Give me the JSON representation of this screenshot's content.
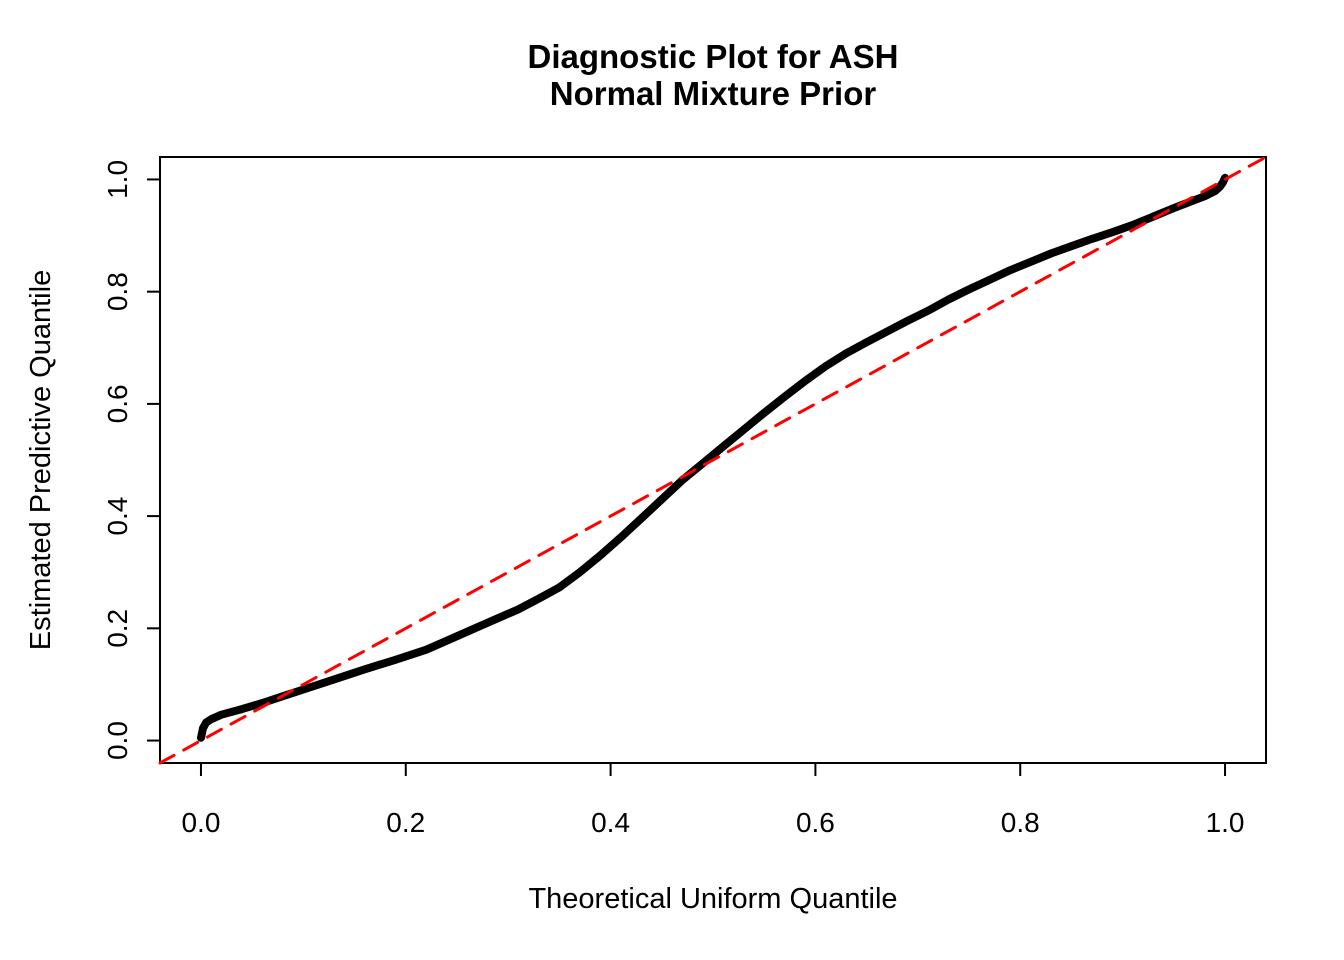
{
  "title": {
    "line1": "Diagnostic Plot for ASH",
    "line2": "Normal Mixture Prior"
  },
  "axes": {
    "x_label": "Theoretical Uniform Quantile",
    "y_label": "Estimated Predictive Quantile"
  },
  "colors": {
    "curve": "#000000",
    "reference_line": "#FF0000",
    "axis": "#000000",
    "background": "#FFFFFF"
  },
  "chart_data": {
    "type": "line",
    "title": "Diagnostic Plot for ASH\nNormal Mixture Prior",
    "xlabel": "Theoretical Uniform Quantile",
    "ylabel": "Estimated Predictive Quantile",
    "xlim": [
      -0.04,
      1.04
    ],
    "ylim": [
      -0.04,
      1.04
    ],
    "x_ticks": [
      0.0,
      0.2,
      0.4,
      0.6,
      0.8,
      1.0
    ],
    "y_ticks": [
      0.0,
      0.2,
      0.4,
      0.6,
      0.8,
      1.0
    ],
    "grid": false,
    "legend": "none",
    "series": [
      {
        "name": "estimated-predictive-quantile-curve",
        "color": "#000000",
        "style": "solid",
        "width": 8,
        "x": [
          0.0,
          0.002,
          0.005,
          0.01,
          0.02,
          0.04,
          0.06,
          0.08,
          0.1,
          0.13,
          0.16,
          0.19,
          0.22,
          0.25,
          0.28,
          0.31,
          0.33,
          0.35,
          0.37,
          0.39,
          0.41,
          0.43,
          0.45,
          0.47,
          0.49,
          0.51,
          0.53,
          0.55,
          0.57,
          0.59,
          0.61,
          0.63,
          0.65,
          0.67,
          0.69,
          0.71,
          0.73,
          0.75,
          0.77,
          0.79,
          0.81,
          0.83,
          0.85,
          0.87,
          0.89,
          0.91,
          0.93,
          0.95,
          0.96,
          0.97,
          0.98,
          0.99,
          0.995,
          0.998,
          1.0
        ],
        "y": [
          0.005,
          0.022,
          0.032,
          0.038,
          0.046,
          0.056,
          0.067,
          0.079,
          0.091,
          0.109,
          0.127,
          0.144,
          0.162,
          0.186,
          0.21,
          0.234,
          0.253,
          0.273,
          0.3,
          0.33,
          0.362,
          0.396,
          0.43,
          0.464,
          0.494,
          0.524,
          0.554,
          0.584,
          0.613,
          0.641,
          0.667,
          0.69,
          0.71,
          0.729,
          0.748,
          0.766,
          0.786,
          0.804,
          0.821,
          0.838,
          0.853,
          0.868,
          0.881,
          0.894,
          0.906,
          0.919,
          0.934,
          0.949,
          0.956,
          0.963,
          0.97,
          0.979,
          0.987,
          0.995,
          1.003
        ]
      },
      {
        "name": "identity-reference-line",
        "color": "#FF0000",
        "style": "dashed",
        "width": 3,
        "x": [
          -0.04,
          1.04
        ],
        "y": [
          -0.04,
          1.04
        ]
      }
    ]
  }
}
